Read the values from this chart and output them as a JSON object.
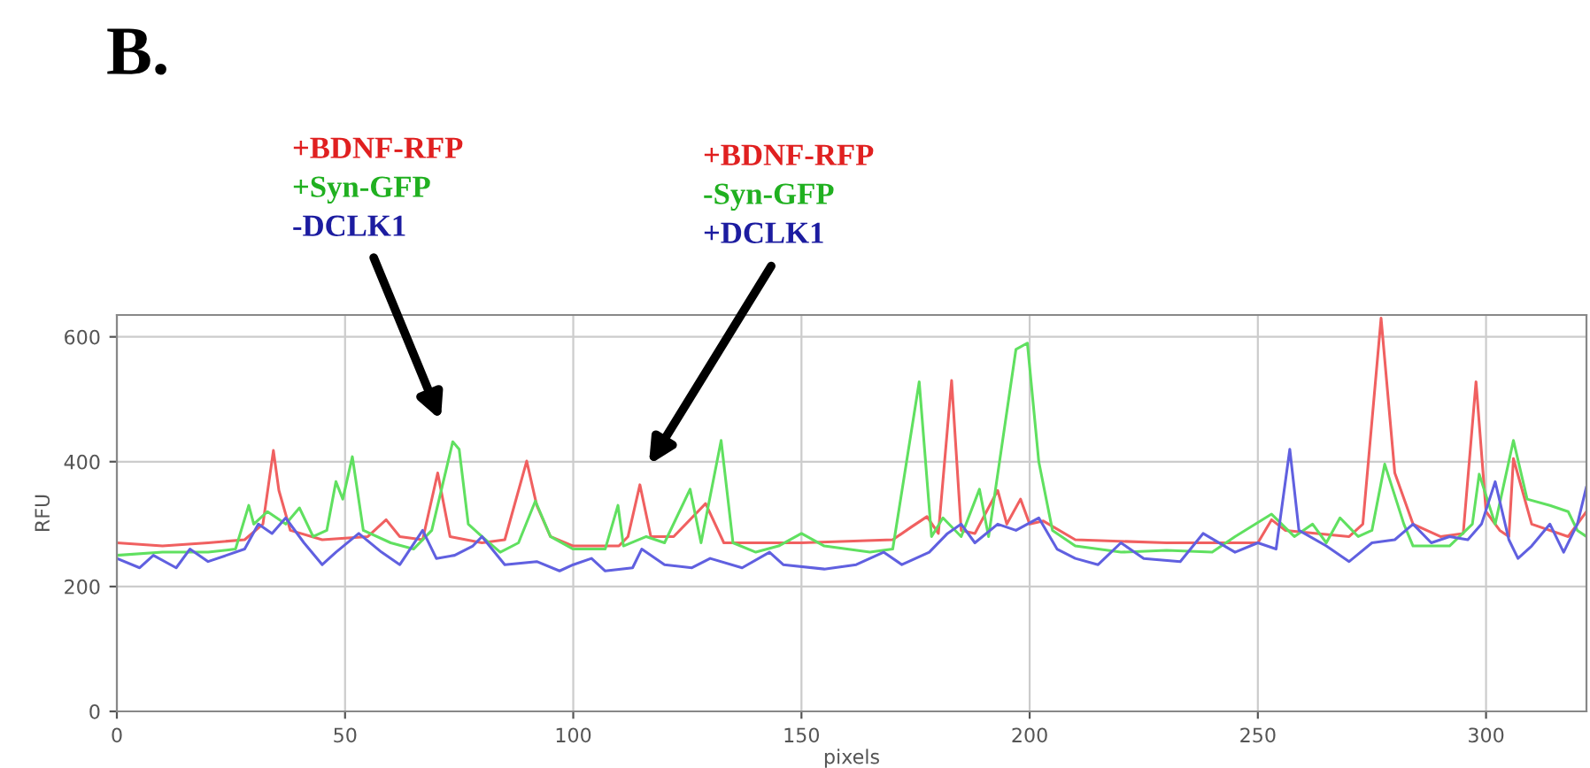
{
  "chart_data": {
    "type": "line",
    "xlabel": "pixels",
    "ylabel": "RFU",
    "annotations": [
      "B.",
      "+BDNF-RFP\n+Syn-GFP\n-DCLK1",
      "+BDNF-RFP\n-Syn-GFP\n+DCLK1"
    ],
    "xlim": [
      0,
      322
    ],
    "ylim": [
      0,
      635
    ],
    "xticks": [
      0,
      50,
      100,
      150,
      200,
      250,
      300
    ],
    "yticks": [
      0,
      200,
      400,
      600
    ],
    "grid": true,
    "series": [
      {
        "color": "#f06060",
        "x": [
          0,
          10,
          20,
          28,
          32,
          34.3,
          35.5,
          38,
          45,
          55,
          59,
          62,
          67,
          70.3,
          73,
          80,
          85,
          89.8,
          92,
          95,
          100,
          110,
          112,
          114.6,
          117,
          122,
          129,
          133,
          150,
          170,
          174,
          177.5,
          180,
          182.9,
          185,
          188,
          193,
          195,
          198,
          200,
          203,
          210,
          230,
          250,
          253,
          256,
          270,
          273,
          277,
          280,
          284,
          290,
          295,
          297.8,
          300,
          303,
          305,
          306,
          310,
          318,
          322
        ],
        "values": [
          270,
          265,
          270,
          275,
          300,
          418,
          354,
          290,
          275,
          280,
          307,
          280,
          275,
          382,
          280,
          270,
          275,
          401,
          330,
          280,
          265,
          265,
          280,
          363,
          280,
          280,
          333,
          270,
          270,
          275,
          295,
          312,
          285,
          530,
          290,
          285,
          354,
          300,
          340,
          300,
          305,
          275,
          270,
          270,
          307,
          290,
          280,
          300,
          630,
          382,
          300,
          280,
          285,
          528,
          320,
          290,
          280,
          405,
          300,
          280,
          320
        ]
      },
      {
        "color": "#60e060",
        "x": [
          0,
          10,
          20,
          26,
          28.9,
          30,
          33,
          37,
          40,
          43,
          46,
          48,
          49.5,
          51.6,
          54,
          60,
          65,
          69,
          73.6,
          75,
          77,
          80,
          84,
          88,
          91.7,
          95,
          100,
          107,
          109.8,
          111,
          116,
          120,
          125.6,
          128,
          132.4,
          135,
          140,
          145,
          150,
          155,
          165,
          170,
          175.8,
          178.5,
          181,
          185,
          189,
          191,
          197,
          199.5,
          202,
          205,
          210,
          220,
          230,
          240,
          245,
          253,
          258,
          262,
          265,
          268,
          272,
          275,
          277.8,
          282,
          284,
          292,
          297,
          298.5,
          302,
          306,
          309,
          314,
          318,
          320,
          322
        ],
        "values": [
          250,
          255,
          255,
          260,
          330,
          300,
          320,
          300,
          326,
          280,
          290,
          368,
          340,
          408,
          290,
          270,
          260,
          290,
          432,
          420,
          300,
          280,
          255,
          270,
          337,
          280,
          260,
          260,
          330,
          265,
          280,
          270,
          356,
          270,
          434,
          270,
          255,
          265,
          285,
          265,
          255,
          260,
          528,
          280,
          310,
          280,
          356,
          280,
          580,
          590,
          400,
          290,
          265,
          255,
          258,
          255,
          280,
          316,
          280,
          300,
          270,
          310,
          280,
          290,
          396,
          300,
          265,
          265,
          300,
          380,
          300,
          434,
          340,
          330,
          320,
          290,
          280
        ]
      },
      {
        "color": "#6060e0",
        "x": [
          0,
          5,
          8,
          13,
          16,
          20,
          24,
          28,
          31,
          34,
          37,
          41,
          45,
          48,
          53,
          58,
          62,
          67,
          70,
          74,
          78,
          80,
          85,
          92,
          97,
          100,
          104,
          107,
          113,
          115,
          120,
          126,
          130,
          137,
          143,
          146,
          155,
          162,
          168,
          172,
          178,
          182,
          185,
          188,
          193,
          197,
          202,
          206,
          210,
          215,
          220,
          225,
          233,
          238,
          245,
          250,
          254,
          257,
          259,
          265,
          270,
          275,
          280,
          284,
          288,
          292,
          296,
          299,
          302,
          305,
          307,
          310,
          314,
          317,
          320,
          322
        ],
        "values": [
          245,
          230,
          250,
          230,
          260,
          240,
          250,
          260,
          300,
          285,
          310,
          270,
          235,
          255,
          285,
          255,
          235,
          290,
          245,
          250,
          265,
          280,
          235,
          240,
          225,
          235,
          245,
          225,
          230,
          260,
          235,
          230,
          245,
          230,
          255,
          235,
          228,
          235,
          255,
          235,
          255,
          285,
          300,
          270,
          300,
          290,
          310,
          260,
          245,
          235,
          270,
          245,
          240,
          285,
          255,
          270,
          260,
          420,
          290,
          265,
          240,
          270,
          275,
          300,
          270,
          280,
          275,
          300,
          368,
          275,
          245,
          265,
          300,
          255,
          300,
          360
        ]
      }
    ]
  }
}
